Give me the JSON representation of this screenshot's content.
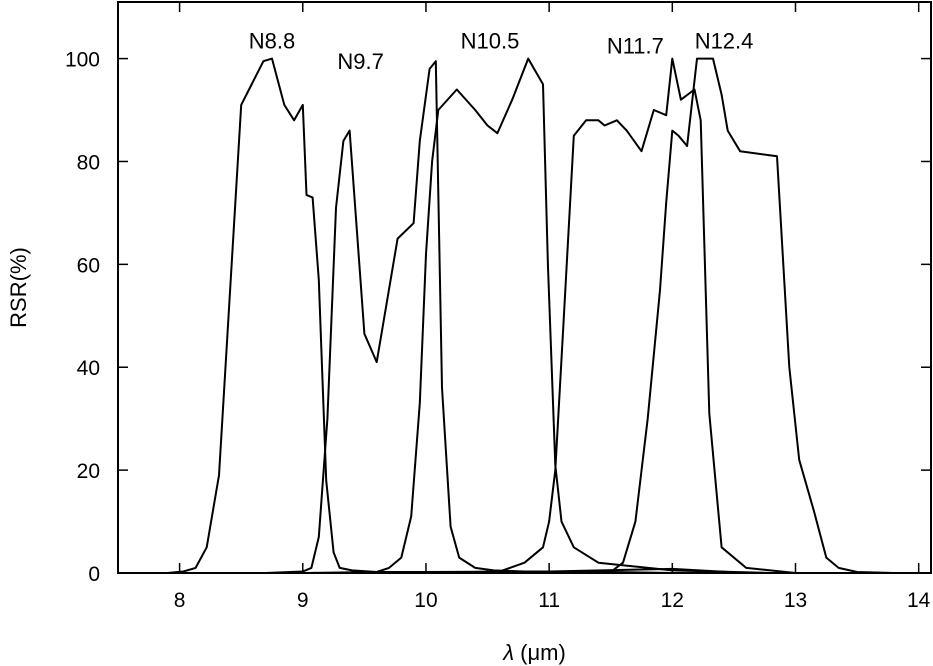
{
  "chart_data": {
    "type": "line",
    "title": "",
    "xlabel_symbol": "λ",
    "xlabel_unit": "(μm)",
    "ylabel": "RSR(%)",
    "xlim": [
      7.5,
      14.1
    ],
    "ylim": [
      0,
      111
    ],
    "xticks": [
      "8",
      "9",
      "10",
      "11",
      "12",
      "13",
      "14"
    ],
    "yticks": [
      "0",
      "20",
      "40",
      "60",
      "80",
      "100"
    ],
    "grid": false,
    "legend": "none",
    "series": [
      {
        "name": "N8.8",
        "label_pos": [
          8.75,
          102
        ],
        "x": [
          7.9,
          8.03,
          8.13,
          8.22,
          8.32,
          8.5,
          8.68,
          8.75,
          8.85,
          8.93,
          9.0,
          9.03,
          9.08,
          9.13,
          9.19,
          9.25,
          9.3,
          9.4,
          9.6,
          10.0,
          11.0,
          12.0,
          12.6
        ],
        "y": [
          0,
          0.3,
          1,
          5,
          19,
          91,
          99.5,
          100,
          91,
          88,
          91,
          73.5,
          73,
          57,
          18,
          4,
          1,
          0.5,
          0.2,
          0.2,
          0.3,
          0.8,
          0
        ]
      },
      {
        "name": "N9.7",
        "label_pos": [
          9.47,
          98
        ],
        "x": [
          8.7,
          9.0,
          9.07,
          9.13,
          9.2,
          9.27,
          9.33,
          9.38,
          9.5,
          9.6,
          9.77,
          9.9,
          9.95,
          10.03,
          10.08,
          10.13,
          10.2,
          10.27,
          10.4,
          10.55,
          10.8,
          11.5,
          12.0
        ],
        "y": [
          0,
          0.3,
          1,
          7,
          30,
          71,
          84,
          86,
          46.5,
          41,
          65,
          68,
          84,
          98,
          99.5,
          36,
          9,
          3,
          1,
          0.5,
          0.3,
          0.2,
          0
        ]
      },
      {
        "name": "N10.5",
        "label_pos": [
          10.52,
          102
        ],
        "x": [
          9.0,
          9.6,
          9.7,
          9.8,
          9.88,
          9.95,
          10.0,
          10.05,
          10.1,
          10.25,
          10.4,
          10.5,
          10.58,
          10.7,
          10.83,
          10.95,
          10.99,
          11.05,
          11.1,
          11.2,
          11.4,
          12.0,
          12.8
        ],
        "y": [
          0,
          0.2,
          1,
          3,
          11,
          33,
          62,
          80,
          90,
          94,
          90,
          87,
          85.5,
          92,
          100,
          95,
          60,
          21,
          10,
          5,
          2,
          0.5,
          0
        ]
      },
      {
        "name": "N11.7",
        "label_pos": [
          11.7,
          101
        ],
        "x": [
          10.0,
          10.6,
          10.8,
          10.95,
          11.0,
          11.05,
          11.12,
          11.2,
          11.3,
          11.4,
          11.45,
          11.55,
          11.63,
          11.75,
          11.85,
          11.95,
          12.0,
          12.07,
          12.18,
          12.23,
          12.3,
          12.4,
          12.6,
          13.0
        ],
        "y": [
          0,
          0.3,
          2,
          5,
          10,
          20,
          50,
          85,
          88,
          88,
          87,
          88,
          86,
          82,
          90,
          89,
          100,
          92,
          94,
          88,
          31,
          5,
          1,
          0
        ]
      },
      {
        "name": "N12.4",
        "label_pos": [
          12.42,
          102
        ],
        "x": [
          11.2,
          11.5,
          11.6,
          11.7,
          11.8,
          11.9,
          11.95,
          12.0,
          12.05,
          12.12,
          12.2,
          12.33,
          12.4,
          12.45,
          12.55,
          12.85,
          12.95,
          13.03,
          13.15,
          13.25,
          13.35,
          13.5,
          13.8
        ],
        "y": [
          0,
          0.2,
          2,
          10,
          30,
          55,
          72,
          86,
          85,
          83,
          100,
          100,
          93,
          86,
          82,
          81,
          40,
          22,
          12,
          3,
          1,
          0.2,
          0
        ]
      }
    ]
  }
}
